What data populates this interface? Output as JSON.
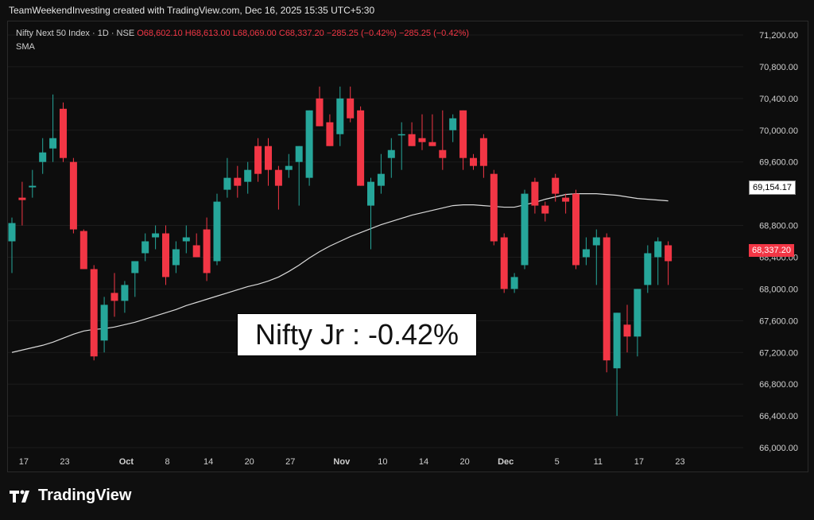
{
  "caption": "TeamWeekendInvesting created with TradingView.com, Dec 16, 2025 15:35 UTC+5:30",
  "header": {
    "symbol": "Nifty Next 50 Index · 1D · NSE",
    "open": "O68,602.10",
    "high": "H68,613.00",
    "low": "L68,069.00",
    "close": "C68,337.20",
    "change": "−285.25 (−0.42%)",
    "change2": "−285.25 (−0.42%)",
    "indicator": "SMA"
  },
  "annotation": "Nifty Jr : -0.42%",
  "price_tags": {
    "sma": "69,154.17",
    "close": "68,337.20"
  },
  "brand": {
    "name": "TradingView"
  },
  "colors": {
    "up": "#26a69a",
    "down": "#f23645",
    "sma": "#d9d9d9",
    "grid": "#1c1c1c"
  },
  "chart_data": {
    "type": "candlestick",
    "title": "Nifty Next 50 Index · 1D · NSE",
    "ylim": [
      65800,
      71300
    ],
    "y_ticks": [
      "71,200.00",
      "70,800.00",
      "70,400.00",
      "70,000.00",
      "69,600.00",
      "68,800.00",
      "68,400.00",
      "68,000.00",
      "67,600.00",
      "67,200.00",
      "66,800.00",
      "66,400.00",
      "66,000.00"
    ],
    "x_ticks": [
      "17",
      "23",
      "Oct",
      "8",
      "14",
      "20",
      "27",
      "Nov",
      "10",
      "14",
      "20",
      "Dec",
      "5",
      "11",
      "17",
      "23"
    ],
    "candles": [
      {
        "o": 68600,
        "h": 68900,
        "l": 68200,
        "c": 68830
      },
      {
        "o": 69150,
        "h": 69350,
        "l": 68800,
        "c": 69120
      },
      {
        "o": 69280,
        "h": 69500,
        "l": 69150,
        "c": 69300
      },
      {
        "o": 69600,
        "h": 69900,
        "l": 69450,
        "c": 69720
      },
      {
        "o": 69770,
        "h": 70450,
        "l": 69600,
        "c": 69900
      },
      {
        "o": 70270,
        "h": 70350,
        "l": 69600,
        "c": 69650
      },
      {
        "o": 69600,
        "h": 69650,
        "l": 68700,
        "c": 68750
      },
      {
        "o": 68730,
        "h": 68750,
        "l": 68250,
        "c": 68250
      },
      {
        "o": 68250,
        "h": 68300,
        "l": 67100,
        "c": 67150
      },
      {
        "o": 67350,
        "h": 67900,
        "l": 67200,
        "c": 67800
      },
      {
        "o": 67950,
        "h": 68200,
        "l": 67650,
        "c": 67850
      },
      {
        "o": 67850,
        "h": 68100,
        "l": 67700,
        "c": 68050
      },
      {
        "o": 68200,
        "h": 68350,
        "l": 67900,
        "c": 68350
      },
      {
        "o": 68450,
        "h": 68700,
        "l": 68350,
        "c": 68600
      },
      {
        "o": 68650,
        "h": 68800,
        "l": 68500,
        "c": 68700
      },
      {
        "o": 68700,
        "h": 68800,
        "l": 68050,
        "c": 68150
      },
      {
        "o": 68300,
        "h": 68600,
        "l": 68200,
        "c": 68500
      },
      {
        "o": 68600,
        "h": 68800,
        "l": 68450,
        "c": 68650
      },
      {
        "o": 68550,
        "h": 68700,
        "l": 68400,
        "c": 68400
      },
      {
        "o": 68750,
        "h": 68900,
        "l": 68100,
        "c": 68200
      },
      {
        "o": 68350,
        "h": 69200,
        "l": 68300,
        "c": 69100
      },
      {
        "o": 69250,
        "h": 69650,
        "l": 69150,
        "c": 69400
      },
      {
        "o": 69400,
        "h": 69550,
        "l": 69150,
        "c": 69300
      },
      {
        "o": 69350,
        "h": 69600,
        "l": 69200,
        "c": 69500
      },
      {
        "o": 69800,
        "h": 69900,
        "l": 69350,
        "c": 69450
      },
      {
        "o": 69800,
        "h": 69900,
        "l": 69300,
        "c": 69500
      },
      {
        "o": 69500,
        "h": 69550,
        "l": 69000,
        "c": 69300
      },
      {
        "o": 69500,
        "h": 69700,
        "l": 69400,
        "c": 69550
      },
      {
        "o": 69600,
        "h": 69800,
        "l": 69050,
        "c": 69800
      },
      {
        "o": 69400,
        "h": 70250,
        "l": 69300,
        "c": 70250
      },
      {
        "o": 70400,
        "h": 70550,
        "l": 70050,
        "c": 70050
      },
      {
        "o": 70100,
        "h": 70200,
        "l": 69800,
        "c": 69800
      },
      {
        "o": 69950,
        "h": 70550,
        "l": 69800,
        "c": 70400
      },
      {
        "o": 70400,
        "h": 70550,
        "l": 70100,
        "c": 70150
      },
      {
        "o": 70250,
        "h": 70300,
        "l": 69300,
        "c": 69300
      },
      {
        "o": 69050,
        "h": 69400,
        "l": 68500,
        "c": 69350
      },
      {
        "o": 69300,
        "h": 69700,
        "l": 69200,
        "c": 69450
      },
      {
        "o": 69650,
        "h": 69900,
        "l": 69400,
        "c": 69750
      },
      {
        "o": 69950,
        "h": 70100,
        "l": 69500,
        "c": 69950
      },
      {
        "o": 69950,
        "h": 70100,
        "l": 69800,
        "c": 69800
      },
      {
        "o": 69900,
        "h": 70200,
        "l": 69750,
        "c": 69850
      },
      {
        "o": 69850,
        "h": 70200,
        "l": 69800,
        "c": 69800
      },
      {
        "o": 69750,
        "h": 70250,
        "l": 69500,
        "c": 69650
      },
      {
        "o": 70000,
        "h": 70200,
        "l": 69850,
        "c": 70150
      },
      {
        "o": 70250,
        "h": 70250,
        "l": 69500,
        "c": 69650
      },
      {
        "o": 69650,
        "h": 69700,
        "l": 69500,
        "c": 69550
      },
      {
        "o": 69900,
        "h": 69950,
        "l": 69400,
        "c": 69550
      },
      {
        "o": 69450,
        "h": 69500,
        "l": 68550,
        "c": 68600
      },
      {
        "o": 68650,
        "h": 68700,
        "l": 67950,
        "c": 68000
      },
      {
        "o": 68000,
        "h": 68200,
        "l": 67950,
        "c": 68150
      },
      {
        "o": 68300,
        "h": 69250,
        "l": 68250,
        "c": 69200
      },
      {
        "o": 69350,
        "h": 69400,
        "l": 68950,
        "c": 69050
      },
      {
        "o": 69050,
        "h": 69100,
        "l": 68850,
        "c": 68950
      },
      {
        "o": 69400,
        "h": 69450,
        "l": 69100,
        "c": 69200
      },
      {
        "o": 69150,
        "h": 69200,
        "l": 68950,
        "c": 69100
      },
      {
        "o": 69200,
        "h": 69250,
        "l": 68250,
        "c": 68300
      },
      {
        "o": 68400,
        "h": 68650,
        "l": 68300,
        "c": 68500
      },
      {
        "o": 68550,
        "h": 68750,
        "l": 68050,
        "c": 68650
      },
      {
        "o": 68650,
        "h": 68700,
        "l": 66950,
        "c": 67100
      },
      {
        "o": 67000,
        "h": 67700,
        "l": 66400,
        "c": 67700
      },
      {
        "o": 67550,
        "h": 67800,
        "l": 67200,
        "c": 67400
      },
      {
        "o": 67400,
        "h": 68000,
        "l": 67150,
        "c": 68000
      },
      {
        "o": 68050,
        "h": 68550,
        "l": 67950,
        "c": 68450
      },
      {
        "o": 68400,
        "h": 68650,
        "l": 68050,
        "c": 68600
      },
      {
        "o": 68550,
        "h": 68600,
        "l": 68050,
        "c": 68350
      }
    ],
    "sma": [
      67200,
      67230,
      67260,
      67290,
      67330,
      67380,
      67430,
      67470,
      67490,
      67500,
      67520,
      67550,
      67580,
      67620,
      67660,
      67700,
      67740,
      67790,
      67830,
      67870,
      67910,
      67950,
      67990,
      68030,
      68060,
      68100,
      68150,
      68220,
      68300,
      68390,
      68470,
      68540,
      68600,
      68660,
      68710,
      68760,
      68810,
      68850,
      68890,
      68930,
      68960,
      68990,
      69020,
      69050,
      69060,
      69060,
      69050,
      69040,
      69030,
      69030,
      69060,
      69090,
      69130,
      69160,
      69190,
      69200,
      69200,
      69200,
      69190,
      69180,
      69160,
      69140,
      69130,
      69120,
      69110
    ]
  }
}
